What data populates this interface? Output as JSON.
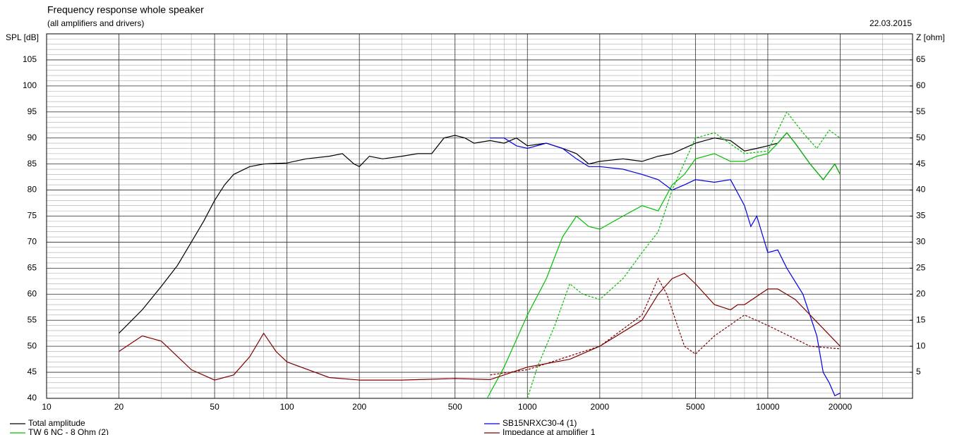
{
  "chart_data": {
    "type": "line",
    "title": "Frequency response whole speaker",
    "subtitle": "(all amplifiers and drivers)",
    "date": "22.03.2015",
    "y_label": "SPL [dB]",
    "y2_label": "Z [ohm]",
    "log_x": true,
    "grid": true,
    "xlim": [
      10,
      40000
    ],
    "xticks": [
      10,
      20,
      50,
      100,
      200,
      500,
      1000,
      2000,
      5000,
      10000,
      20000
    ],
    "ylim": [
      40,
      110
    ],
    "yticks": [
      40,
      45,
      50,
      55,
      60,
      65,
      70,
      75,
      80,
      85,
      90,
      95,
      100,
      105
    ],
    "y2lim": [
      0,
      70
    ],
    "y2ticks": [
      5,
      10,
      15,
      20,
      25,
      30,
      35,
      40,
      45,
      50,
      55,
      60,
      65
    ],
    "series": [
      {
        "name": "Total amplitude",
        "color": "#000000",
        "x": [
          20,
          25,
          30,
          35,
          40,
          45,
          50,
          55,
          60,
          70,
          80,
          100,
          120,
          150,
          170,
          190,
          200,
          220,
          250,
          300,
          350,
          400,
          450,
          500,
          550,
          600,
          700,
          800,
          900,
          1000,
          1200,
          1400,
          1600,
          1800,
          2000,
          2500,
          3000,
          3500,
          4000,
          5000,
          6000,
          7000,
          8000,
          9000,
          10000,
          11000,
          12000,
          13000,
          15000,
          17000,
          19000,
          20000
        ],
        "values": [
          52.5,
          57,
          61.5,
          65.5,
          70,
          74,
          78,
          81,
          83,
          84.5,
          85,
          85.2,
          86,
          86.5,
          87,
          85,
          84.5,
          86.5,
          86,
          86.5,
          87,
          87,
          90,
          90.5,
          90,
          89,
          89.5,
          89,
          90,
          88.5,
          89,
          88,
          87,
          85,
          85.5,
          86,
          85.5,
          86.5,
          87,
          89,
          90,
          89.5,
          87.5,
          88,
          88.5,
          89,
          91,
          89,
          85,
          82,
          85,
          83
        ]
      },
      {
        "name": "TW 6 NC - 8 Ohm (2)",
        "color": "#00c000",
        "x": [
          680,
          800,
          1000,
          1200,
          1400,
          1600,
          1800,
          2000,
          2500,
          3000,
          3500,
          4000,
          4500,
          5000,
          6000,
          7000,
          8000,
          9000,
          10000,
          11000,
          12000,
          13000,
          15000,
          17000,
          19000,
          20000
        ],
        "values": [
          40,
          46,
          56,
          63,
          71,
          75,
          73,
          72.5,
          75,
          77,
          76,
          81,
          83,
          86,
          87,
          85.5,
          85.5,
          86.5,
          87,
          89,
          91,
          89,
          85,
          82,
          85,
          83
        ]
      },
      {
        "name": "SB15NRXC30-4 (1)",
        "color": "#0000e0",
        "x": [
          700,
          800,
          900,
          1000,
          1200,
          1400,
          1600,
          1800,
          2000,
          2500,
          3000,
          3500,
          4000,
          4500,
          5000,
          6000,
          7000,
          8000,
          8500,
          9000,
          10000,
          11000,
          12000,
          14000,
          16000,
          17000,
          18000,
          19000,
          20000
        ],
        "values": [
          90,
          90,
          88.5,
          88,
          89,
          88,
          86,
          84.5,
          84.5,
          84,
          83,
          82,
          80,
          81,
          82,
          81.5,
          82,
          77,
          73,
          75,
          68,
          68.5,
          65,
          60,
          52,
          45,
          43,
          40.5,
          41
        ]
      },
      {
        "name": "Impedance at amplifier 1",
        "color": "#800000",
        "axis": "y2",
        "x": [
          20,
          25,
          30,
          40,
          50,
          60,
          70,
          80,
          90,
          100,
          150,
          200,
          300,
          500,
          700,
          1000,
          1500,
          2000,
          3000,
          3500,
          4000,
          4500,
          5000,
          6000,
          7000,
          7500,
          8000,
          10000,
          11000,
          13000,
          15000,
          20000
        ],
        "values": [
          9,
          12,
          11,
          5.5,
          3.5,
          4.5,
          8,
          12.5,
          9,
          7,
          4,
          3.5,
          3.5,
          3.8,
          3.6,
          6,
          7.5,
          10,
          15,
          20,
          23,
          24,
          22,
          18,
          17,
          18,
          18,
          21,
          21,
          19,
          16,
          10
        ]
      },
      {
        "color": "#00c000",
        "dash": true,
        "x": [
          1000,
          1100,
          1300,
          1500,
          1700,
          2000,
          2500,
          3000,
          3500,
          4000,
          5000,
          6000,
          8000,
          10000,
          12000,
          14000,
          16000,
          18000,
          20000
        ],
        "values": [
          40,
          46,
          54,
          62,
          60,
          59,
          63,
          68,
          72,
          80,
          90,
          91,
          87,
          87.5,
          95,
          91,
          88,
          91.5,
          90
        ]
      },
      {
        "color": "#800000",
        "dash": true,
        "axis": "y2",
        "x": [
          700,
          1000,
          2000,
          3000,
          3500,
          3800,
          4500,
          5000,
          6000,
          8000,
          10000,
          15000,
          20000
        ],
        "values": [
          4.5,
          5.5,
          10,
          16,
          23,
          20,
          10,
          8.5,
          12,
          16,
          14,
          10,
          9.5
        ]
      }
    ]
  }
}
